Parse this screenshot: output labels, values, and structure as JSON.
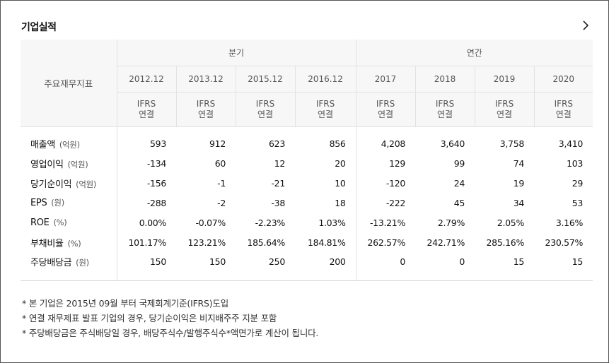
{
  "section": {
    "title": "기업실적"
  },
  "table": {
    "label_header": "주요재무지표",
    "groups": [
      {
        "label": "분기",
        "span": 4
      },
      {
        "label": "연간",
        "span": 4
      }
    ],
    "periods": [
      "2012.12",
      "2013.12",
      "2015.12",
      "2016.12",
      "2017",
      "2018",
      "2019",
      "2020"
    ],
    "standards": [
      [
        "IFRS",
        "연결"
      ],
      [
        "IFRS",
        "연결"
      ],
      [
        "IFRS",
        "연결"
      ],
      [
        "IFRS",
        "연결"
      ],
      [
        "IFRS",
        "연결"
      ],
      [
        "IFRS",
        "연결"
      ],
      [
        "IFRS",
        "연결"
      ],
      [
        "IFRS",
        "연결"
      ]
    ],
    "rows": [
      {
        "label": "매출액",
        "unit": "(억원)",
        "values": [
          "593",
          "912",
          "623",
          "856",
          "4,208",
          "3,640",
          "3,758",
          "3,410"
        ]
      },
      {
        "label": "영업이익",
        "unit": "(억원)",
        "values": [
          "-134",
          "60",
          "12",
          "20",
          "129",
          "99",
          "74",
          "103"
        ]
      },
      {
        "label": "당기순이익",
        "unit": "(억원)",
        "values": [
          "-156",
          "-1",
          "-21",
          "10",
          "-120",
          "24",
          "19",
          "29"
        ]
      },
      {
        "label": "EPS",
        "unit": "(원)",
        "values": [
          "-288",
          "-2",
          "-38",
          "18",
          "-222",
          "45",
          "34",
          "53"
        ]
      },
      {
        "label": "ROE",
        "unit": "(%)",
        "values": [
          "0.00%",
          "-0.07%",
          "-2.23%",
          "1.03%",
          "-13.21%",
          "2.79%",
          "2.05%",
          "3.16%"
        ]
      },
      {
        "label": "부채비율",
        "unit": "(%)",
        "values": [
          "101.17%",
          "123.21%",
          "185.64%",
          "184.81%",
          "262.57%",
          "242.71%",
          "285.16%",
          "230.57%"
        ]
      },
      {
        "label": "주당배당금",
        "unit": "(원)",
        "values": [
          "150",
          "150",
          "250",
          "200",
          "0",
          "0",
          "15",
          "15"
        ]
      }
    ]
  },
  "notes": [
    "* 본 기업은 2015년 09월 부터 국제회계기준(IFRS)도입",
    "* 연결 재무제표 발표 기업의 경우, 당기순이익은 비지배주주 지분 포함",
    "* 주당배당금은 주식배당일 경우, 배당주식수/발행주식수*액면가로 계산이 됩니다."
  ],
  "icons": {
    "more": "chevron-right-icon"
  },
  "colors": {
    "header_bg": "#f7f7f7",
    "border": "#e2e2e2",
    "text": "#222222"
  }
}
